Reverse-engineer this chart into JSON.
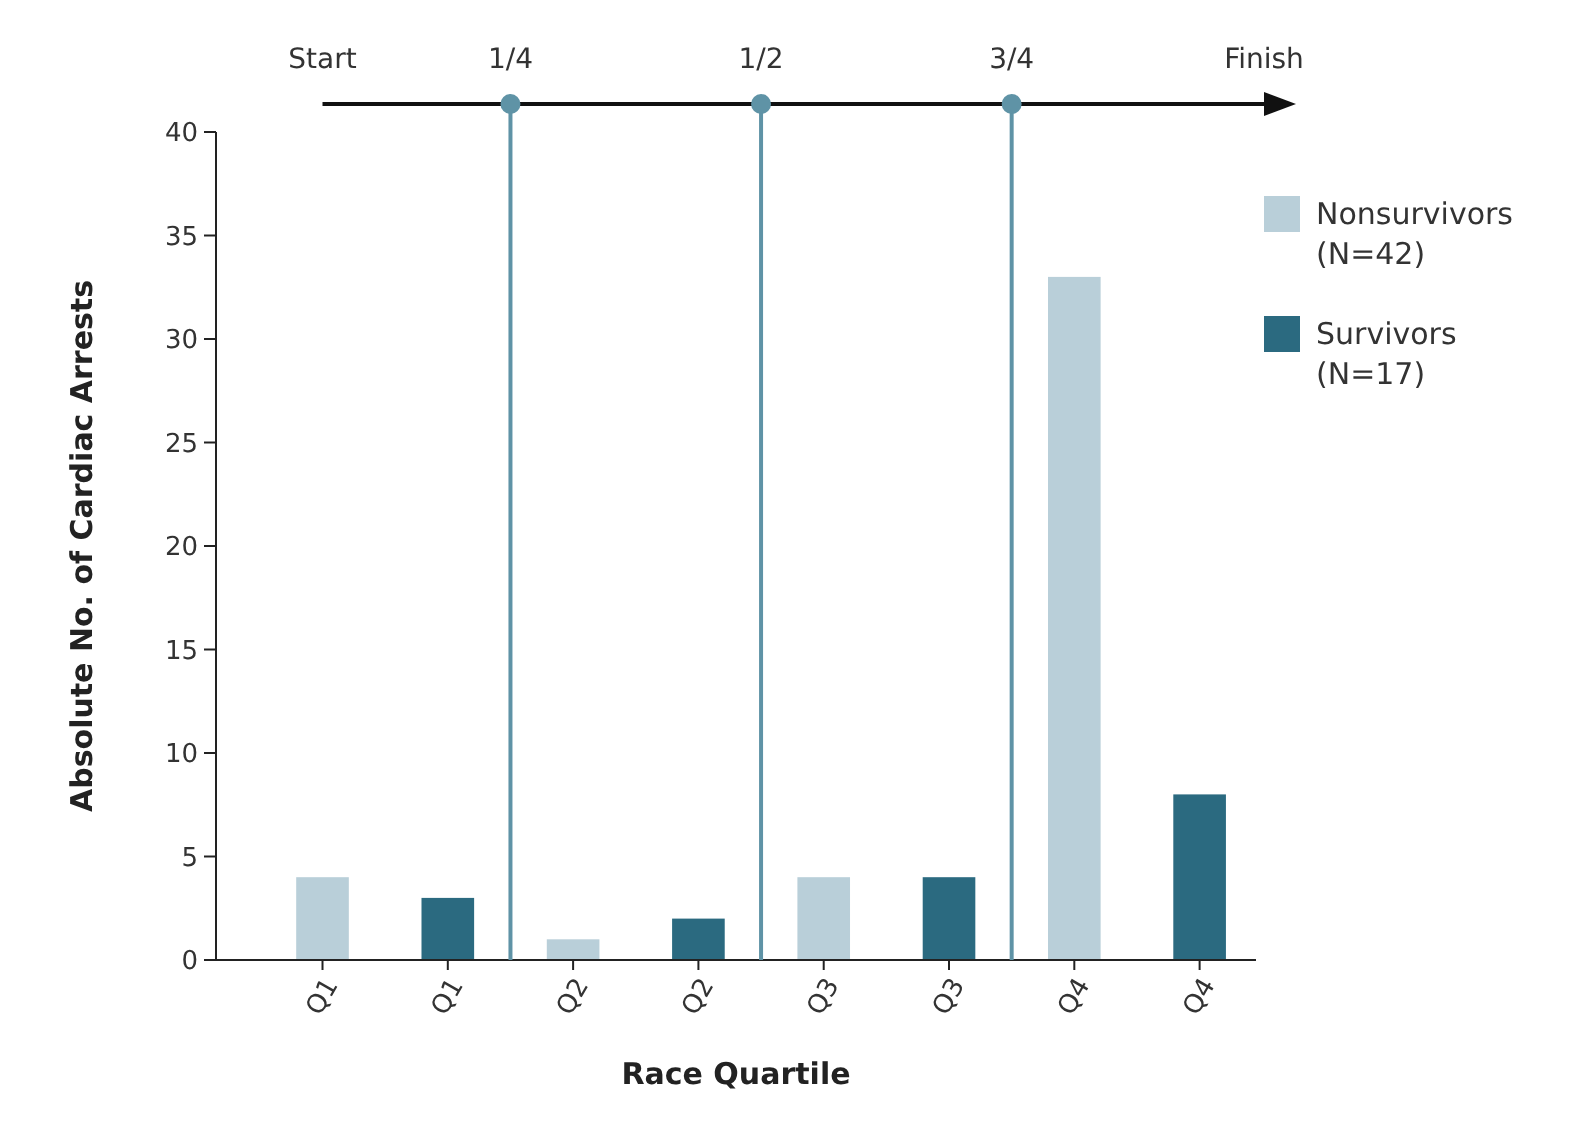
{
  "chart_data": {
    "type": "bar",
    "xlabel": "Race Quartile",
    "ylabel": "Absolute No. of Cardiac Arrests",
    "categories": [
      "Q1",
      "Q1",
      "Q2",
      "Q2",
      "Q3",
      "Q3",
      "Q4",
      "Q4"
    ],
    "series": [
      {
        "name": "Nonsurvivors\n(N=42)",
        "color": "#b9cfd9",
        "values": [
          4,
          null,
          1,
          null,
          4,
          null,
          33,
          null
        ]
      },
      {
        "name": "Survivors\n(N=17)",
        "color": "#2b6a80",
        "values": [
          null,
          3,
          null,
          2,
          null,
          4,
          null,
          8
        ]
      }
    ],
    "ylim": [
      0,
      40
    ],
    "yticks": [
      0,
      5,
      10,
      15,
      20,
      25,
      30,
      35,
      40
    ],
    "grid": false,
    "legend": "top right",
    "annotations": [
      "Start",
      "1/4",
      "1/2",
      "3/4",
      "Finish"
    ]
  }
}
